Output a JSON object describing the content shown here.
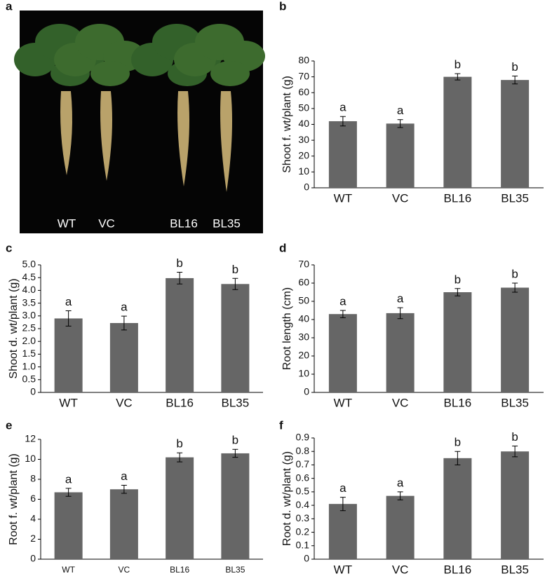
{
  "photo": {
    "panel": "a",
    "labels": [
      "WT",
      "VC",
      "BL16",
      "BL35"
    ]
  },
  "chart_data": [
    {
      "type": "bar",
      "panel": "b",
      "ylabel": "Shoot f. wt/plant (g)",
      "categories": [
        "WT",
        "VC",
        "BL16",
        "BL35"
      ],
      "values": [
        42,
        40.5,
        70,
        68
      ],
      "errors": [
        3,
        2.5,
        2,
        2.5
      ],
      "annotations": [
        "a",
        "a",
        "b",
        "b"
      ],
      "color": "#666666",
      "ylim": [
        0,
        80
      ],
      "yticks": [
        0,
        10,
        20,
        30,
        40,
        50,
        60,
        70,
        80
      ]
    },
    {
      "type": "bar",
      "panel": "c",
      "ylabel": "Shoot d. wt/plant (g)",
      "categories": [
        "WT",
        "VC",
        "BL16",
        "BL35"
      ],
      "values": [
        2.9,
        2.72,
        4.48,
        4.25
      ],
      "errors": [
        0.3,
        0.27,
        0.23,
        0.22
      ],
      "annotations": [
        "a",
        "a",
        "b",
        "b"
      ],
      "color": "#666666",
      "ylim": [
        0,
        5
      ],
      "yticks": [
        0,
        0.5,
        {
          "value": 1,
          "label": "1.0"
        },
        1.5,
        {
          "value": 2,
          "label": "2.0"
        },
        2.5,
        {
          "value": 3,
          "label": "3.0"
        },
        3.5,
        {
          "value": 4,
          "label": "4.0"
        },
        4.5,
        {
          "value": 5,
          "label": "5.0"
        }
      ]
    },
    {
      "type": "bar",
      "panel": "d",
      "ylabel": "Root length (cm)",
      "categories": [
        "WT",
        "VC",
        "BL16",
        "BL35"
      ],
      "values": [
        43,
        43.5,
        55,
        57.5
      ],
      "errors": [
        2,
        3,
        2,
        2.5
      ],
      "annotations": [
        "a",
        "a",
        "b",
        "b"
      ],
      "color": "#666666",
      "ylim": [
        0,
        70
      ],
      "yticks": [
        0,
        10,
        20,
        30,
        40,
        50,
        60,
        70
      ]
    },
    {
      "type": "bar",
      "panel": "e",
      "ylabel": "Root f. wt/plant (g)",
      "categories": [
        "WT",
        "VC",
        "BL16",
        "BL35"
      ],
      "values": [
        6.7,
        7.0,
        10.2,
        10.6
      ],
      "errors": [
        0.4,
        0.4,
        0.45,
        0.4
      ],
      "annotations": [
        "a",
        "a",
        "b",
        "b"
      ],
      "color": "#666666",
      "ylim": [
        0,
        12
      ],
      "yticks": [
        0,
        2,
        4,
        6,
        8,
        10,
        12
      ]
    },
    {
      "type": "bar",
      "panel": "f",
      "ylabel": "Root d. wt/plant (g)",
      "categories": [
        "WT",
        "VC",
        "BL16",
        "BL35"
      ],
      "values": [
        0.41,
        0.47,
        0.75,
        0.8
      ],
      "errors": [
        0.05,
        0.03,
        0.05,
        0.04
      ],
      "annotations": [
        "a",
        "a",
        "b",
        "b"
      ],
      "color": "#666666",
      "ylim": [
        0,
        0.9
      ],
      "yticks": [
        0,
        0.1,
        0.2,
        0.3,
        0.4,
        0.5,
        0.6,
        0.7,
        0.8,
        0.9
      ]
    }
  ]
}
